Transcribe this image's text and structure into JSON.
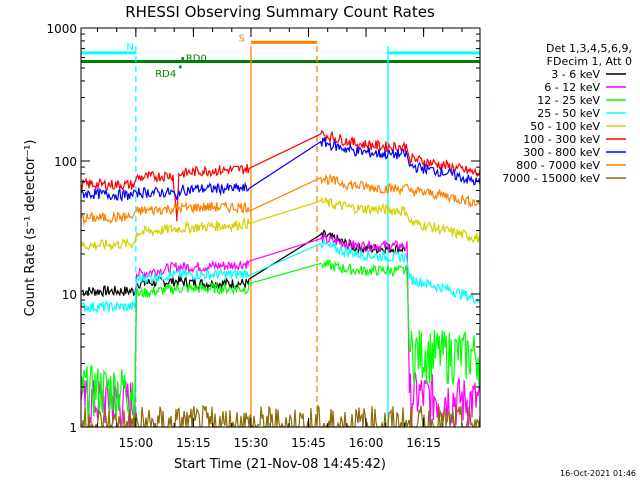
{
  "chart_data": {
    "type": "line",
    "title": "RHESSI Observing Summary Count Rates",
    "xlabel": "Start Time (21-Nov-08 14:45:42)",
    "ylabel": "Count Rate (s⁻¹ detector⁻¹)",
    "yscale": "log",
    "xlim_minutes": [
      0,
      104
    ],
    "ylim": [
      1,
      1000
    ],
    "x_ticks": [
      {
        "t": 14.3,
        "label": "15:00"
      },
      {
        "t": 29.3,
        "label": "15:15"
      },
      {
        "t": 44.3,
        "label": "15:30"
      },
      {
        "t": 59.3,
        "label": "15:45"
      },
      {
        "t": 74.3,
        "label": "16:00"
      },
      {
        "t": 89.3,
        "label": "16:15"
      }
    ],
    "y_ticks": [
      {
        "v": 1,
        "label": "1"
      },
      {
        "v": 10,
        "label": "10"
      },
      {
        "v": 100,
        "label": "100"
      },
      {
        "v": 1000,
        "label": "1000"
      }
    ],
    "legend": {
      "placement": "right",
      "header": [
        "Det 1,3,4,5,6,9,",
        "FDecim 1, Att 0"
      ]
    },
    "footer_timestamp": "16-Oct-2021 01:46",
    "series": [
      {
        "name": "3 - 6 keV",
        "color": "#000000",
        "points": [
          [
            0,
            10.5
          ],
          [
            14,
            10.5
          ],
          [
            14.5,
            12
          ],
          [
            25,
            12.5
          ],
          [
            31,
            12
          ],
          [
            40,
            12
          ],
          [
            43.8,
            12
          ],
          [
            62.5,
            28
          ],
          [
            66,
            26
          ],
          [
            72,
            22
          ],
          [
            80,
            22
          ],
          [
            84.5,
            22
          ]
        ]
      },
      {
        "name": "6 - 12 keV",
        "color": "#ff00ff",
        "points": [
          [
            0,
            1.6
          ],
          [
            14,
            1.6
          ],
          [
            14.5,
            14
          ],
          [
            25,
            16
          ],
          [
            31,
            16
          ],
          [
            40,
            16.5
          ],
          [
            43.8,
            17
          ],
          [
            62.5,
            26
          ],
          [
            66,
            25
          ],
          [
            72,
            23
          ],
          [
            80,
            23
          ],
          [
            85,
            23
          ],
          [
            85.6,
            1.8
          ],
          [
            104,
            1.6
          ]
        ]
      },
      {
        "name": "12 - 25 keV",
        "color": "#00ff00",
        "points": [
          [
            0,
            2
          ],
          [
            14,
            2
          ],
          [
            14.5,
            10
          ],
          [
            25,
            11
          ],
          [
            31,
            11
          ],
          [
            40,
            11
          ],
          [
            43.8,
            11
          ],
          [
            62.5,
            17
          ],
          [
            66,
            16
          ],
          [
            72,
            15
          ],
          [
            80,
            15
          ],
          [
            85,
            15
          ],
          [
            85.6,
            3.8
          ],
          [
            104,
            3.6
          ]
        ]
      },
      {
        "name": "25 - 50 keV",
        "color": "#00ffff",
        "points": [
          [
            0,
            8
          ],
          [
            14,
            8
          ],
          [
            14.5,
            13
          ],
          [
            25,
            14
          ],
          [
            31,
            14
          ],
          [
            40,
            14
          ],
          [
            43.8,
            14.5
          ],
          [
            62.5,
            24
          ],
          [
            66,
            22
          ],
          [
            72,
            20
          ],
          [
            80,
            19
          ],
          [
            85,
            19
          ],
          [
            85.6,
            13
          ],
          [
            95,
            11
          ],
          [
            104,
            9
          ]
        ]
      },
      {
        "name": "50 - 100 keV",
        "color": "#d2d200",
        "points": [
          [
            0,
            23
          ],
          [
            14,
            24
          ],
          [
            14.5,
            29
          ],
          [
            25,
            31
          ],
          [
            31,
            32
          ],
          [
            40,
            33
          ],
          [
            43.8,
            34
          ],
          [
            62.5,
            50
          ],
          [
            66,
            47
          ],
          [
            72,
            44
          ],
          [
            80,
            43
          ],
          [
            85,
            42
          ],
          [
            85.6,
            35
          ],
          [
            95,
            30
          ],
          [
            104,
            26
          ]
        ]
      },
      {
        "name": "100 - 300 keV",
        "color": "#ff0000",
        "points": [
          [
            0,
            67
          ],
          [
            14,
            66
          ],
          [
            14.5,
            75
          ],
          [
            24,
            78
          ],
          [
            25,
            36
          ],
          [
            25.5,
            80
          ],
          [
            31,
            84
          ],
          [
            40,
            86
          ],
          [
            43.8,
            88
          ],
          [
            62.5,
            160
          ],
          [
            66,
            150
          ],
          [
            72,
            135
          ],
          [
            80,
            128
          ],
          [
            85,
            128
          ],
          [
            85.6,
            105
          ],
          [
            95,
            92
          ],
          [
            104,
            80
          ]
        ]
      },
      {
        "name": "300 - 800 keV",
        "color": "#0000ff",
        "points": [
          [
            0,
            57
          ],
          [
            14,
            55
          ],
          [
            14.5,
            58
          ],
          [
            24,
            58
          ],
          [
            25,
            50
          ],
          [
            25.5,
            60
          ],
          [
            31,
            62
          ],
          [
            40,
            62
          ],
          [
            43.8,
            62
          ],
          [
            62.5,
            140
          ],
          [
            66,
            130
          ],
          [
            72,
            118
          ],
          [
            80,
            112
          ],
          [
            85,
            112
          ],
          [
            85.6,
            92
          ],
          [
            95,
            82
          ],
          [
            104,
            68
          ]
        ]
      },
      {
        "name": "800 - 7000 keV",
        "color": "#ff8000",
        "points": [
          [
            0,
            37
          ],
          [
            14,
            38
          ],
          [
            14.5,
            42
          ],
          [
            25,
            44
          ],
          [
            31,
            45
          ],
          [
            40,
            45
          ],
          [
            43.8,
            45
          ],
          [
            62.5,
            75
          ],
          [
            66,
            70
          ],
          [
            72,
            65
          ],
          [
            80,
            62
          ],
          [
            85,
            62
          ],
          [
            85.6,
            60
          ],
          [
            95,
            55
          ],
          [
            104,
            48
          ]
        ]
      },
      {
        "name": "7000 - 15000 keV",
        "color": "#8b6b08",
        "points": [
          [
            0,
            1
          ],
          [
            104,
            1
          ]
        ]
      }
    ],
    "flag_bars": [
      {
        "label": "N",
        "color": "#00ffff",
        "t0": 0,
        "t1": 14.3,
        "v": 650
      },
      {
        "label": "",
        "color": "#00ffff",
        "t0": 80,
        "t1": 104,
        "v": 650
      },
      {
        "label": "S",
        "color": "#ff8000",
        "t0": 44.3,
        "t1": 61.5,
        "v": 780
      },
      {
        "label": "",
        "color": "#008000",
        "t0": 0,
        "t1": 104,
        "v": 560
      },
      {
        "label": "RD4",
        "color": "#008000",
        "t0": 25.6,
        "t1": 26.2,
        "v": 510
      },
      {
        "label": "RD0",
        "color": "#008000",
        "t0": 26.2,
        "t1": 26.8,
        "v": 590
      }
    ],
    "vlines": [
      {
        "t": 14.3,
        "color": "#00ffff",
        "dash": true
      },
      {
        "t": 44.3,
        "color": "#ff8000",
        "dash": false
      },
      {
        "t": 61.5,
        "color": "#ff8000",
        "dash": true
      },
      {
        "t": 80,
        "color": "#00ffff",
        "dash": false
      },
      {
        "t": 104,
        "color": "#00ffff",
        "dash": true
      }
    ]
  }
}
